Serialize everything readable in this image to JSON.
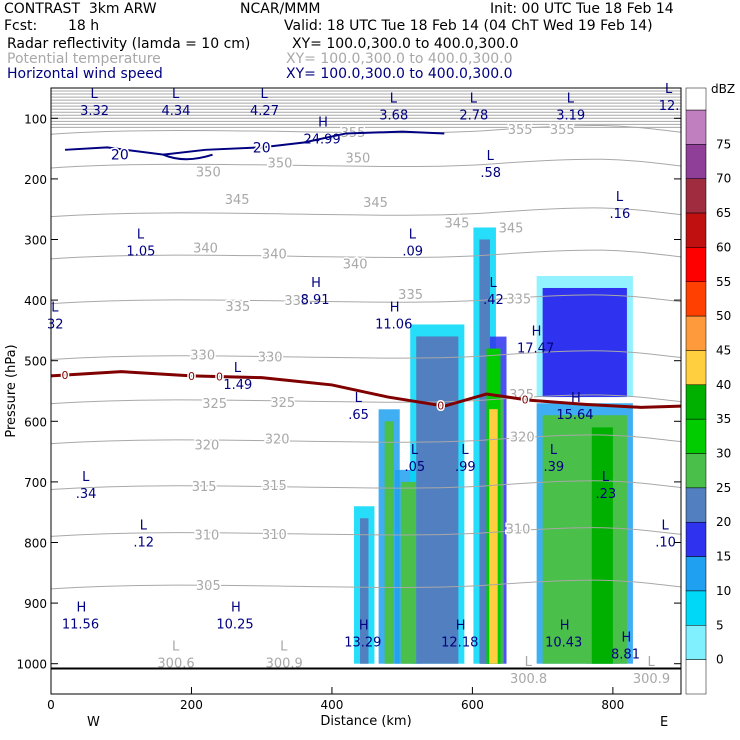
{
  "header": {
    "model": "CONTRAST  3km ARW",
    "center": "NCAR/MMM",
    "init": "Init: 00 UTC Tue 18 Feb 14",
    "fcst_label": "Fcst:",
    "fcst_value": "18 h",
    "valid": "Valid: 18 UTC Tue 18 Feb 14 (04 ChT Wed 19 Feb 14)",
    "field1": "Radar reflectivity (lamda = 10 cm)",
    "xy1": "XY= 100.0,300.0 to 400.0,300.0",
    "field2": "Potential temperature",
    "xy2": "XY= 100.0,300.0 to 400.0,300.0",
    "field3": "Horizontal wind speed",
    "xy3": "XY= 100.0,300.0 to 400.0,300.0"
  },
  "colors": {
    "wind": "#000080",
    "theta": "#a8a8a8",
    "freezing": "#800000"
  },
  "chart_data": {
    "type": "cross-section",
    "xlabel": "Distance (km)",
    "ylabel": "Pressure (hPa)",
    "xlim": [
      0,
      897
    ],
    "ylim": [
      1050,
      50
    ],
    "x_ticks": [
      0,
      200,
      400,
      600,
      800
    ],
    "y_ticks": [
      100,
      200,
      300,
      400,
      500,
      600,
      700,
      800,
      900,
      1000
    ],
    "left_end_label": "W",
    "right_end_label": "E",
    "colorbar": {
      "unit": "dBZ",
      "levels": [
        {
          "value": 75,
          "color": "#c080c0"
        },
        {
          "value": 70,
          "color": "#8f3f97"
        },
        {
          "value": 65,
          "color": "#a02c40"
        },
        {
          "value": 60,
          "color": "#c01010"
        },
        {
          "value": 55,
          "color": "#ff0000"
        },
        {
          "value": 50,
          "color": "#ff4000"
        },
        {
          "value": 45,
          "color": "#ff9a3c"
        },
        {
          "value": 40,
          "color": "#ffcf3f"
        },
        {
          "value": 35,
          "color": "#00b000"
        },
        {
          "value": 30,
          "color": "#00cc00"
        },
        {
          "value": 25,
          "color": "#4abf4a"
        },
        {
          "value": 20,
          "color": "#527fc0"
        },
        {
          "value": 15,
          "color": "#2f33ef"
        },
        {
          "value": 10,
          "color": "#1fa0f0"
        },
        {
          "value": 5,
          "color": "#00d8f8"
        },
        {
          "value": 0,
          "color": "#80f0ff"
        }
      ]
    },
    "theta_contour_labels": [
      {
        "text": "355",
        "x": 430,
        "p": 123
      },
      {
        "text": "355",
        "x": 668,
        "p": 118
      },
      {
        "text": "355",
        "x": 728,
        "p": 118
      },
      {
        "text": "350",
        "x": 224,
        "p": 188
      },
      {
        "text": "350",
        "x": 326,
        "p": 173
      },
      {
        "text": "350",
        "x": 437,
        "p": 165
      },
      {
        "text": "345",
        "x": 265,
        "p": 233
      },
      {
        "text": "345",
        "x": 462,
        "p": 238
      },
      {
        "text": "345",
        "x": 578,
        "p": 272
      },
      {
        "text": "345",
        "x": 655,
        "p": 280
      },
      {
        "text": "340",
        "x": 220,
        "p": 313
      },
      {
        "text": "340",
        "x": 318,
        "p": 323
      },
      {
        "text": "340",
        "x": 433,
        "p": 340
      },
      {
        "text": "335",
        "x": 266,
        "p": 410
      },
      {
        "text": "335",
        "x": 350,
        "p": 400
      },
      {
        "text": "335",
        "x": 512,
        "p": 390
      },
      {
        "text": "335",
        "x": 666,
        "p": 397
      },
      {
        "text": "330",
        "x": 216,
        "p": 490
      },
      {
        "text": "330",
        "x": 312,
        "p": 493
      },
      {
        "text": "325",
        "x": 233,
        "p": 570
      },
      {
        "text": "325",
        "x": 330,
        "p": 568
      },
      {
        "text": "325",
        "x": 670,
        "p": 555
      },
      {
        "text": "320",
        "x": 222,
        "p": 638
      },
      {
        "text": "320",
        "x": 322,
        "p": 628
      },
      {
        "text": "320",
        "x": 671,
        "p": 625
      },
      {
        "text": "315",
        "x": 218,
        "p": 707
      },
      {
        "text": "315",
        "x": 318,
        "p": 705
      },
      {
        "text": "310",
        "x": 222,
        "p": 787
      },
      {
        "text": "310",
        "x": 318,
        "p": 786
      },
      {
        "text": "310",
        "x": 665,
        "p": 777
      },
      {
        "text": "305",
        "x": 224,
        "p": 870
      }
    ],
    "theta_extrema": [
      {
        "type": "L",
        "value": "300.6",
        "x": 178,
        "p": 1000
      },
      {
        "type": "L",
        "value": "300.9",
        "x": 332,
        "p": 1000
      },
      {
        "type": "L",
        "value": "300.8",
        "x": 680,
        "p": 1025
      },
      {
        "type": "L",
        "value": "300.9",
        "x": 855,
        "p": 1025
      }
    ],
    "wind_contour_labels": [
      {
        "text": "20",
        "x": 98,
        "p": 160
      },
      {
        "text": "20",
        "x": 300,
        "p": 148
      }
    ],
    "wind_extrema": [
      {
        "type": "L",
        "value": "3.32",
        "x": 62,
        "p": 88
      },
      {
        "type": "L",
        "value": "4.34",
        "x": 178,
        "p": 88
      },
      {
        "type": "L",
        "value": "4.27",
        "x": 304,
        "p": 88
      },
      {
        "type": "L",
        "value": "3.68",
        "x": 488,
        "p": 95
      },
      {
        "type": "L",
        "value": "2.78",
        "x": 602,
        "p": 95
      },
      {
        "type": "L",
        "value": "3.19",
        "x": 740,
        "p": 95
      },
      {
        "type": "L",
        "value": "12.",
        "x": 880,
        "p": 80
      },
      {
        "type": "H",
        "value": "24.99",
        "x": 386,
        "p": 135
      },
      {
        "type": "L",
        "value": ".58",
        "x": 626,
        "p": 190
      },
      {
        "type": "L",
        "value": ".16",
        "x": 810,
        "p": 258
      },
      {
        "type": "L",
        "value": "1.05",
        "x": 128,
        "p": 320
      },
      {
        "type": "L",
        "value": ".09",
        "x": 515,
        "p": 320
      },
      {
        "type": "L",
        "value": ".42",
        "x": 630,
        "p": 400
      },
      {
        "type": "H",
        "value": "8.91",
        "x": 376,
        "p": 400
      },
      {
        "type": "H",
        "value": "11.06",
        "x": 488,
        "p": 440
      },
      {
        "type": "H",
        "value": "17.47",
        "x": 690,
        "p": 480
      },
      {
        "type": "L",
        "value": "1.49",
        "x": 266,
        "p": 540
      },
      {
        "type": "L",
        "value": ".65",
        "x": 438,
        "p": 590
      },
      {
        "type": "H",
        "value": "15.64",
        "x": 746,
        "p": 590
      },
      {
        "type": "L",
        "value": ".05",
        "x": 518,
        "p": 675
      },
      {
        "type": "L",
        "value": ".99",
        "x": 590,
        "p": 675
      },
      {
        "type": "L",
        "value": ".39",
        "x": 716,
        "p": 675
      },
      {
        "type": "L",
        "value": ".23",
        "x": 790,
        "p": 720
      },
      {
        "type": "L",
        "value": ".34",
        "x": 50,
        "p": 720
      },
      {
        "type": "L",
        "value": ".12",
        "x": 132,
        "p": 800
      },
      {
        "type": "L",
        "value": ".10",
        "x": 875,
        "p": 800
      },
      {
        "type": "L",
        "value": "32",
        "x": 6,
        "p": 440
      },
      {
        "type": "H",
        "value": "11.56",
        "x": 42,
        "p": 935
      },
      {
        "type": "H",
        "value": "10.25",
        "x": 262,
        "p": 935
      },
      {
        "type": "H",
        "value": "13.29",
        "x": 444,
        "p": 965
      },
      {
        "type": "H",
        "value": "12.18",
        "x": 582,
        "p": 965
      },
      {
        "type": "H",
        "value": "10.43",
        "x": 730,
        "p": 965
      },
      {
        "type": "H",
        "value": "8.81",
        "x": 818,
        "p": 985
      }
    ],
    "freezing_level": {
      "value": "0",
      "points": [
        [
          0,
          525
        ],
        [
          100,
          518
        ],
        [
          200,
          525
        ],
        [
          300,
          528
        ],
        [
          400,
          540
        ],
        [
          480,
          560
        ],
        [
          560,
          575
        ],
        [
          620,
          555
        ],
        [
          680,
          565
        ],
        [
          760,
          572
        ],
        [
          840,
          577
        ],
        [
          897,
          575
        ]
      ],
      "label_x": [
        20,
        200,
        240,
        555,
        675
      ]
    },
    "reflectivity_columns": [
      {
        "x0": 440,
        "x1": 452,
        "p_top": 760,
        "p_bot": 1000,
        "dbz": 20
      },
      {
        "x0": 475,
        "x1": 488,
        "p_top": 600,
        "p_bot": 1000,
        "dbz": 25
      },
      {
        "x0": 498,
        "x1": 520,
        "p_top": 700,
        "p_bot": 1000,
        "dbz": 25
      },
      {
        "x0": 520,
        "x1": 580,
        "p_top": 460,
        "p_bot": 1000,
        "dbz": 20
      },
      {
        "x0": 610,
        "x1": 625,
        "p_top": 300,
        "p_bot": 1000,
        "dbz": 20
      },
      {
        "x0": 620,
        "x1": 640,
        "p_top": 480,
        "p_bot": 1000,
        "dbz": 30
      },
      {
        "x0": 624,
        "x1": 636,
        "p_top": 580,
        "p_bot": 1000,
        "dbz": 40
      },
      {
        "x0": 700,
        "x1": 820,
        "p_top": 380,
        "p_bot": 560,
        "dbz": 15
      },
      {
        "x0": 700,
        "x1": 820,
        "p_top": 590,
        "p_bot": 1000,
        "dbz": 25
      },
      {
        "x0": 770,
        "x1": 800,
        "p_top": 610,
        "p_bot": 1000,
        "dbz": 35
      }
    ]
  }
}
